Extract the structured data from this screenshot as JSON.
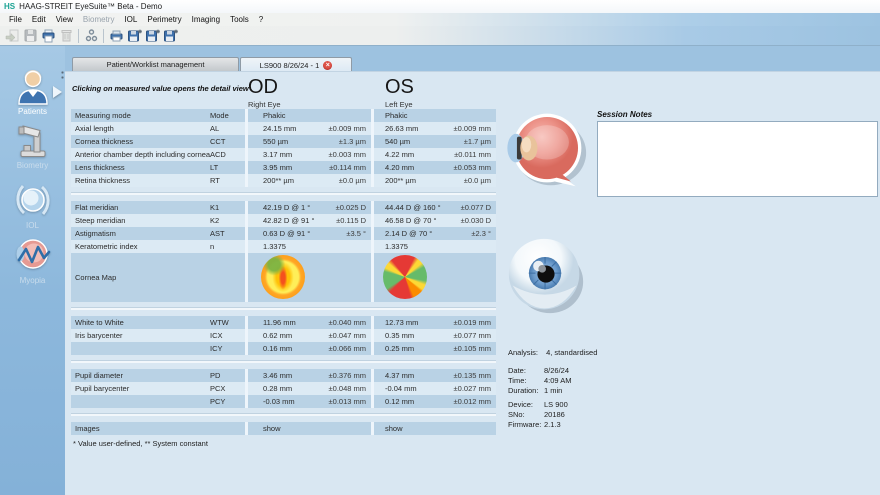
{
  "window": {
    "logo": "HS",
    "title": "HAAG-STREIT EyeSuite™ Beta  -  Demo"
  },
  "menu": {
    "items": [
      {
        "label": "File",
        "enabled": true
      },
      {
        "label": "Edit",
        "enabled": true
      },
      {
        "label": "View",
        "enabled": true
      },
      {
        "label": "Biometry",
        "enabled": false
      },
      {
        "label": "IOL",
        "enabled": true
      },
      {
        "label": "Perimetry",
        "enabled": true
      },
      {
        "label": "Imaging",
        "enabled": true
      },
      {
        "label": "Tools",
        "enabled": true
      },
      {
        "label": "?",
        "enabled": true
      }
    ]
  },
  "toolbar": {
    "icons": [
      {
        "name": "import-icon",
        "enabled": false
      },
      {
        "name": "save-icon",
        "enabled": false
      },
      {
        "name": "print-icon",
        "enabled": true
      },
      {
        "name": "delete-icon",
        "enabled": false
      },
      {
        "name": "connections-icon",
        "enabled": true
      },
      {
        "name": "print-report-icon",
        "enabled": true
      },
      {
        "name": "export-save-1-icon",
        "enabled": true
      },
      {
        "name": "export-save-2-icon",
        "enabled": true
      },
      {
        "name": "export-save-3-icon",
        "enabled": true
      }
    ]
  },
  "sidebar": {
    "items": [
      {
        "label": "Patients",
        "active": true
      },
      {
        "label": "Biometry",
        "active": false
      },
      {
        "label": "IOL",
        "active": false
      },
      {
        "label": "Myopia",
        "active": false
      }
    ]
  },
  "tabs": [
    {
      "label": "Patient/Worklist management",
      "active": false,
      "closable": false
    },
    {
      "label": "LS900 8/26/24 - 1",
      "active": true,
      "closable": true
    }
  ],
  "content": {
    "hint": "Clicking on measured value opens the detail view",
    "od": {
      "code": "OD",
      "name": "Right Eye"
    },
    "os": {
      "code": "OS",
      "name": "Left Eye"
    },
    "footnote": "* Value user-defined,  ** System constant"
  },
  "table": {
    "sections": [
      {
        "rows": [
          {
            "label": "Measuring mode",
            "mode": "Mode",
            "od": "Phakic",
            "od_err": "",
            "os": "Phakic",
            "os_err": ""
          },
          {
            "label": "Axial length",
            "mode": "AL",
            "od": "24.15 mm",
            "od_err": "±0.009 mm",
            "os": "26.63 mm",
            "os_err": "±0.009 mm"
          },
          {
            "label": "Cornea thickness",
            "mode": "CCT",
            "od": "550 µm",
            "od_err": "±1.3 µm",
            "os": "540 µm",
            "os_err": "±1.7 µm"
          },
          {
            "label": "Anterior chamber depth including cornea",
            "mode": "ACD",
            "od": "3.17 mm",
            "od_err": "±0.003 mm",
            "os": "4.22 mm",
            "os_err": "±0.011 mm"
          },
          {
            "label": "Lens thickness",
            "mode": "LT",
            "od": "3.95 mm",
            "od_err": "±0.114 mm",
            "os": "4.20 mm",
            "os_err": "±0.053 mm"
          },
          {
            "label": "Retina thickness",
            "mode": "RT",
            "od": "200** µm",
            "od_err": "±0.0 µm",
            "os": "200** µm",
            "os_err": "±0.0 µm"
          }
        ]
      },
      {
        "rows": [
          {
            "label": "Flat meridian",
            "mode": "K1",
            "od": "42.19 D @ 1 °",
            "od_err": "±0.025 D",
            "os": "44.44 D @ 160 °",
            "os_err": "±0.077 D"
          },
          {
            "label": "Steep meridian",
            "mode": "K2",
            "od": "42.82 D @ 91 °",
            "od_err": "±0.115 D",
            "os": "46.58 D @ 70 °",
            "os_err": "±0.030 D"
          },
          {
            "label": "Astigmatism",
            "mode": "AST",
            "od": "0.63 D @ 91 °",
            "od_err": "±3.5 °",
            "os": "2.14 D @ 70 °",
            "os_err": "±2.3 °"
          },
          {
            "label": "Keratometric index",
            "mode": "n",
            "od": "1.3375",
            "od_err": "",
            "os": "1.3375",
            "os_err": ""
          },
          {
            "type": "map",
            "label": "Cornea Map"
          }
        ]
      },
      {
        "rows": [
          {
            "label": "White to White",
            "mode": "WTW",
            "od": "11.96 mm",
            "od_err": "±0.040 mm",
            "os": "12.73 mm",
            "os_err": "±0.019 mm"
          },
          {
            "label": "Iris barycenter",
            "mode": "ICX",
            "od": "0.62 mm",
            "od_err": "±0.047 mm",
            "os": "0.35 mm",
            "os_err": "±0.077 mm"
          },
          {
            "label": "",
            "mode": "ICY",
            "od": "0.16 mm",
            "od_err": "±0.066 mm",
            "os": "0.25 mm",
            "os_err": "±0.105 mm"
          }
        ]
      },
      {
        "rows": [
          {
            "label": "Pupil diameter",
            "mode": "PD",
            "od": "3.46 mm",
            "od_err": "±0.376 mm",
            "os": "4.37 mm",
            "os_err": "±0.135 mm"
          },
          {
            "label": "Pupil barycenter",
            "mode": "PCX",
            "od": "0.28 mm",
            "od_err": "±0.048 mm",
            "os": "-0.04 mm",
            "os_err": "±0.027 mm"
          },
          {
            "label": "",
            "mode": "PCY",
            "od": "-0.03 mm",
            "od_err": "±0.013 mm",
            "os": "0.12 mm",
            "os_err": "±0.012 mm"
          }
        ]
      },
      {
        "rows": [
          {
            "label": "Images",
            "mode": "",
            "od": "show",
            "od_err": "",
            "os": "show",
            "os_err": "",
            "link": true
          }
        ]
      }
    ]
  },
  "notes": {
    "label": "Session Notes",
    "value": ""
  },
  "info": {
    "analysis": {
      "label": "Analysis:",
      "value": "4, standardised"
    },
    "groups": [
      [
        {
          "label": "Date:",
          "value": "8/26/24"
        },
        {
          "label": "Time:",
          "value": "4:09 AM"
        },
        {
          "label": "Duration:",
          "value": "1 min"
        }
      ],
      [
        {
          "label": "Device:",
          "value": "LS 900"
        },
        {
          "label": "SNo:",
          "value": "20186"
        },
        {
          "label": "Firmware:",
          "value": "2.1.3"
        }
      ]
    ]
  },
  "colors": {
    "row_dark": "#b9d2e5",
    "row_light": "#dceaf4",
    "panel_bg": "#d9e7f2",
    "workspace_bg": "#9dc2e0",
    "accent_blue": "#3f72ad",
    "tab_close_red": "#dd5348",
    "logo_teal": "#1ba393"
  },
  "cornea_maps": {
    "od_palette": [
      "#66bb6a",
      "#ffee58",
      "#ffa726",
      "#f4511e"
    ],
    "os_palette": [
      "#e53935",
      "#fdd835",
      "#66bb6a",
      "#fb8c00"
    ]
  }
}
